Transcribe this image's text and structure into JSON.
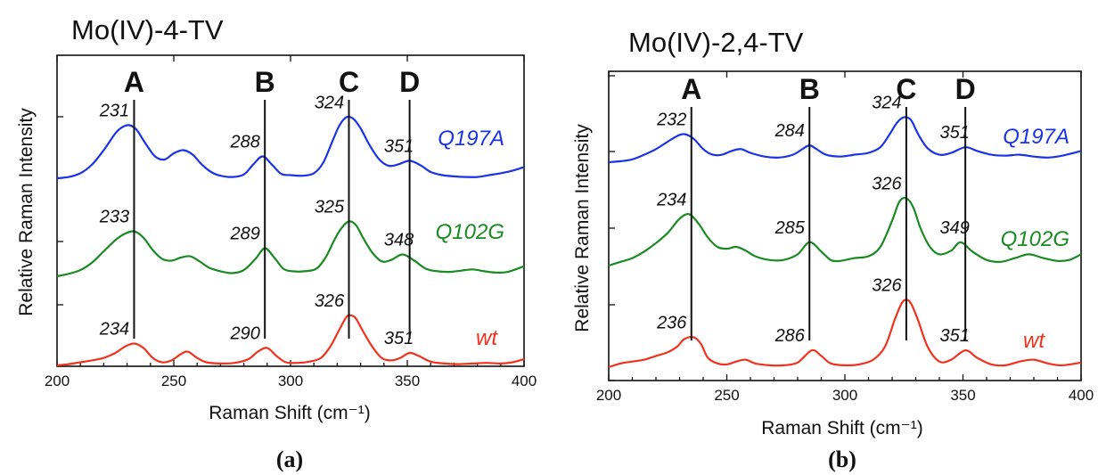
{
  "chart_data": [
    {
      "panel": "(a)",
      "type": "line",
      "title": "Mo(IV)-4-TV",
      "xlabel": "Raman Shift (cm⁻¹)",
      "ylabel": "Relative Raman Intensity",
      "xlim": [
        200,
        400
      ],
      "xticks": [
        200,
        250,
        300,
        350,
        400
      ],
      "peak_markers": [
        {
          "letter": "A",
          "x": 233
        },
        {
          "letter": "B",
          "x": 289
        },
        {
          "letter": "C",
          "x": 325
        },
        {
          "letter": "D",
          "x": 351
        }
      ],
      "series": [
        {
          "name": "Q197A",
          "color": "#1a33e6",
          "offset": 2.0,
          "x": [
            200,
            205,
            210,
            215,
            220,
            225,
            228,
            231,
            234,
            238,
            242,
            246,
            250,
            254,
            258,
            262,
            266,
            270,
            275,
            280,
            284,
            288,
            292,
            296,
            300,
            305,
            310,
            314,
            318,
            321,
            324,
            327,
            330,
            334,
            338,
            342,
            346,
            351,
            356,
            360,
            365,
            370,
            375,
            380,
            385,
            390,
            395,
            400
          ],
          "y": [
            0.0,
            0.02,
            0.08,
            0.22,
            0.45,
            0.72,
            0.82,
            0.85,
            0.78,
            0.55,
            0.35,
            0.3,
            0.4,
            0.45,
            0.38,
            0.22,
            0.1,
            0.04,
            0.02,
            0.06,
            0.22,
            0.35,
            0.22,
            0.07,
            0.05,
            0.04,
            0.08,
            0.25,
            0.6,
            0.85,
            0.98,
            0.95,
            0.8,
            0.52,
            0.3,
            0.2,
            0.22,
            0.28,
            0.2,
            0.1,
            0.05,
            0.03,
            0.02,
            0.02,
            0.05,
            0.08,
            0.12,
            0.18
          ]
        },
        {
          "name": "Q102G",
          "color": "#1a8a22",
          "offset": 1.0,
          "x": [
            200,
            205,
            210,
            215,
            220,
            225,
            229,
            233,
            237,
            241,
            245,
            249,
            253,
            257,
            261,
            265,
            270,
            275,
            280,
            285,
            289,
            293,
            297,
            301,
            306,
            311,
            315,
            319,
            322,
            325,
            328,
            331,
            335,
            339,
            343,
            348,
            353,
            358,
            363,
            368,
            373,
            378,
            383,
            388,
            393,
            400
          ],
          "y": [
            0.0,
            0.04,
            0.1,
            0.22,
            0.4,
            0.58,
            0.68,
            0.72,
            0.62,
            0.42,
            0.28,
            0.25,
            0.3,
            0.32,
            0.24,
            0.14,
            0.08,
            0.05,
            0.1,
            0.28,
            0.45,
            0.3,
            0.12,
            0.08,
            0.08,
            0.12,
            0.3,
            0.6,
            0.78,
            0.88,
            0.82,
            0.62,
            0.38,
            0.24,
            0.26,
            0.35,
            0.25,
            0.12,
            0.08,
            0.07,
            0.09,
            0.11,
            0.08,
            0.06,
            0.07,
            0.16
          ]
        },
        {
          "name": "wt",
          "color": "#f0321e",
          "offset": 0.0,
          "x": [
            200,
            205,
            210,
            215,
            220,
            225,
            229,
            233,
            237,
            241,
            245,
            249,
            253,
            256,
            260,
            264,
            270,
            276,
            282,
            286,
            290,
            294,
            298,
            303,
            308,
            313,
            317,
            321,
            324,
            326,
            328,
            331,
            335,
            339,
            343,
            347,
            351,
            355,
            360,
            366,
            372,
            378,
            384,
            390,
            395,
            400
          ],
          "y": [
            0.0,
            0.02,
            0.05,
            0.08,
            0.12,
            0.2,
            0.3,
            0.35,
            0.28,
            0.12,
            0.05,
            0.08,
            0.18,
            0.22,
            0.12,
            0.05,
            0.03,
            0.04,
            0.1,
            0.22,
            0.28,
            0.15,
            0.05,
            0.04,
            0.06,
            0.12,
            0.3,
            0.58,
            0.78,
            0.8,
            0.75,
            0.55,
            0.3,
            0.12,
            0.08,
            0.12,
            0.2,
            0.15,
            0.06,
            0.03,
            0.02,
            0.03,
            0.04,
            0.03,
            0.05,
            0.1
          ]
        }
      ],
      "peak_labels": [
        {
          "series": "Q197A",
          "texts": [
            "231",
            "288",
            "324",
            "351"
          ]
        },
        {
          "series": "Q102G",
          "texts": [
            "233",
            "289",
            "325",
            "348"
          ]
        },
        {
          "series": "wt",
          "texts": [
            "234",
            "290",
            "326",
            "351"
          ]
        }
      ]
    },
    {
      "panel": "(b)",
      "type": "line",
      "title": "Mo(IV)-2,4-TV",
      "xlabel": "Raman Shift (cm⁻¹)",
      "ylabel": "Relative Raman Intensity",
      "xlim": [
        200,
        400
      ],
      "xticks": [
        200,
        250,
        300,
        350,
        400
      ],
      "peak_markers": [
        {
          "letter": "A",
          "x": 235
        },
        {
          "letter": "B",
          "x": 285
        },
        {
          "letter": "C",
          "x": 326
        },
        {
          "letter": "D",
          "x": 351
        }
      ],
      "series": [
        {
          "name": "Q197A",
          "color": "#1a33e6",
          "offset": 2.0,
          "x": [
            200,
            205,
            210,
            215,
            220,
            225,
            229,
            232,
            236,
            240,
            244,
            248,
            252,
            256,
            260,
            266,
            272,
            278,
            282,
            285,
            288,
            292,
            298,
            304,
            310,
            315,
            319,
            322,
            325,
            328,
            331,
            335,
            340,
            345,
            351,
            356,
            362,
            368,
            374,
            380,
            386,
            392,
            400
          ],
          "y": [
            0.0,
            0.01,
            0.03,
            0.08,
            0.14,
            0.22,
            0.28,
            0.3,
            0.25,
            0.14,
            0.08,
            0.08,
            0.12,
            0.14,
            0.1,
            0.06,
            0.05,
            0.08,
            0.14,
            0.18,
            0.14,
            0.08,
            0.06,
            0.08,
            0.1,
            0.16,
            0.3,
            0.42,
            0.48,
            0.45,
            0.3,
            0.15,
            0.08,
            0.1,
            0.16,
            0.12,
            0.08,
            0.07,
            0.08,
            0.06,
            0.05,
            0.07,
            0.12
          ]
        },
        {
          "name": "Q102G",
          "color": "#1a8a22",
          "offset": 1.0,
          "x": [
            200,
            205,
            210,
            215,
            220,
            225,
            230,
            234,
            238,
            242,
            246,
            250,
            254,
            258,
            262,
            268,
            274,
            280,
            285,
            290,
            294,
            298,
            304,
            310,
            315,
            320,
            323,
            326,
            329,
            332,
            336,
            340,
            345,
            349,
            354,
            360,
            366,
            372,
            378,
            384,
            390,
            395,
            400
          ],
          "y": [
            0.0,
            0.04,
            0.08,
            0.15,
            0.24,
            0.35,
            0.5,
            0.55,
            0.45,
            0.3,
            0.2,
            0.18,
            0.2,
            0.16,
            0.1,
            0.06,
            0.06,
            0.12,
            0.25,
            0.15,
            0.06,
            0.05,
            0.08,
            0.1,
            0.2,
            0.48,
            0.68,
            0.72,
            0.62,
            0.4,
            0.2,
            0.12,
            0.16,
            0.25,
            0.15,
            0.06,
            0.04,
            0.08,
            0.12,
            0.08,
            0.05,
            0.06,
            0.12
          ]
        },
        {
          "name": "wt",
          "color": "#f0321e",
          "offset": 0.0,
          "x": [
            200,
            205,
            210,
            215,
            220,
            225,
            229,
            232,
            236,
            239,
            242,
            246,
            250,
            254,
            258,
            262,
            268,
            274,
            280,
            286,
            290,
            294,
            300,
            306,
            312,
            317,
            321,
            324,
            326,
            328,
            331,
            335,
            340,
            345,
            351,
            356,
            362,
            368,
            374,
            380,
            386,
            392,
            400
          ],
          "y": [
            0.0,
            0.04,
            0.06,
            0.08,
            0.12,
            0.16,
            0.22,
            0.3,
            0.32,
            0.25,
            0.1,
            0.04,
            0.03,
            0.06,
            0.08,
            0.04,
            0.02,
            0.02,
            0.05,
            0.18,
            0.12,
            0.04,
            0.02,
            0.03,
            0.08,
            0.22,
            0.5,
            0.68,
            0.72,
            0.68,
            0.5,
            0.22,
            0.06,
            0.08,
            0.18,
            0.1,
            0.03,
            0.02,
            0.06,
            0.08,
            0.04,
            0.02,
            0.05
          ]
        }
      ],
      "peak_labels": [
        {
          "series": "Q197A",
          "texts": [
            "232",
            "284",
            "324",
            "351"
          ]
        },
        {
          "series": "Q102G",
          "texts": [
            "234",
            "285",
            "326",
            "349"
          ]
        },
        {
          "series": "wt",
          "texts": [
            "236",
            "286",
            "326",
            "351"
          ]
        }
      ]
    }
  ]
}
